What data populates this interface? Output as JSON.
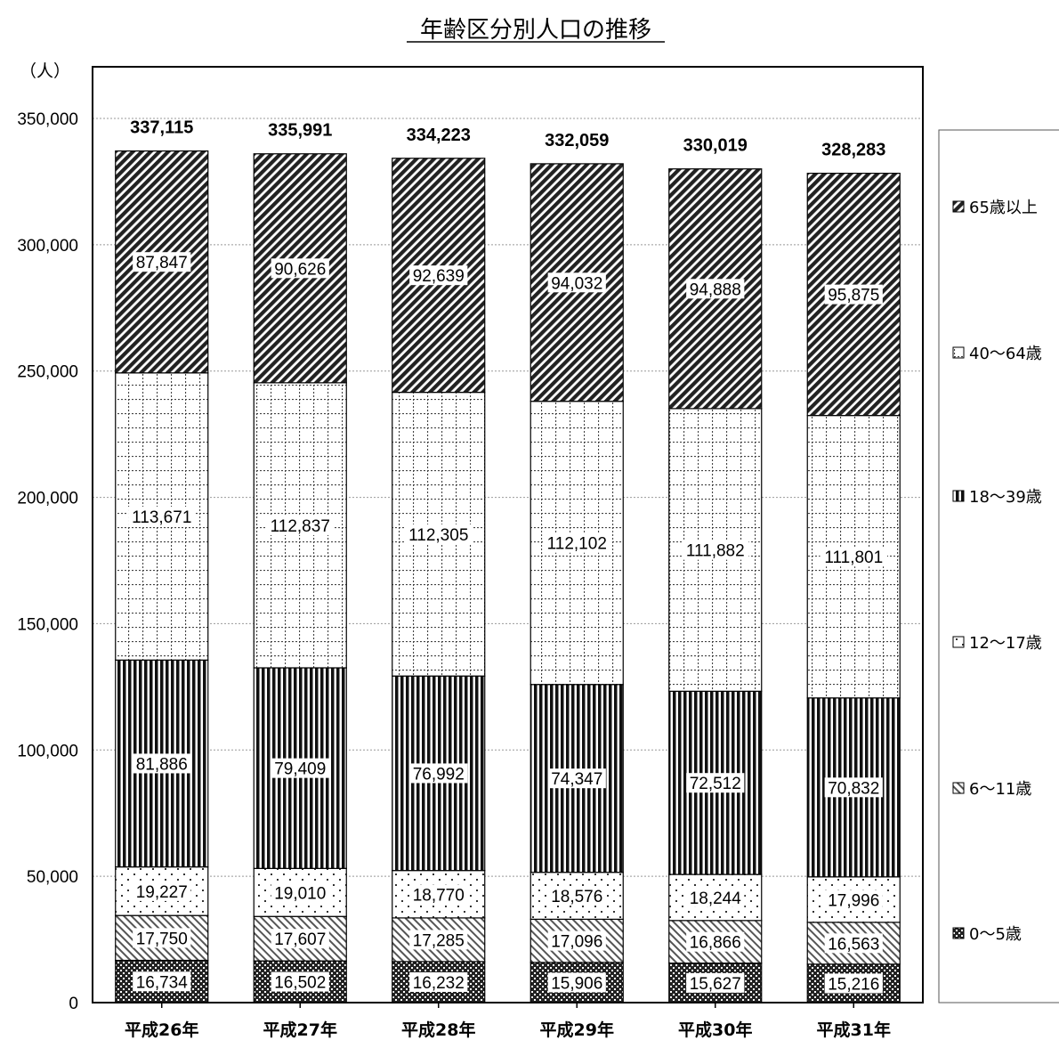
{
  "chart_data": {
    "type": "bar",
    "stacked": true,
    "title": "年齢区分別人口の推移",
    "unit_label": "（人）",
    "categories": [
      "平成26年",
      "平成27年",
      "平成28年",
      "平成29年",
      "平成30年",
      "平成31年"
    ],
    "series": [
      {
        "name": "0〜5歳",
        "pattern": "dots-dense",
        "values": [
          16734,
          16502,
          16232,
          15906,
          15627,
          15216
        ]
      },
      {
        "name": "6〜11歳",
        "pattern": "diagonal-light",
        "values": [
          17750,
          17607,
          17285,
          17096,
          16866,
          16563
        ]
      },
      {
        "name": "12〜17歳",
        "pattern": "dots-sparse",
        "values": [
          19227,
          19010,
          18770,
          18576,
          18244,
          17996
        ]
      },
      {
        "name": "18〜39歳",
        "pattern": "vertical-stripes",
        "values": [
          81886,
          79409,
          76992,
          74347,
          72512,
          70832
        ]
      },
      {
        "name": "40〜64歳",
        "pattern": "dotted-grid",
        "values": [
          113671,
          112837,
          112305,
          112102,
          111882,
          111801
        ]
      },
      {
        "name": "65歳以上",
        "pattern": "diagonal-dark",
        "values": [
          87847,
          90626,
          92639,
          94032,
          94888,
          95875
        ]
      }
    ],
    "totals": [
      337115,
      335991,
      334223,
      332059,
      330019,
      328283
    ],
    "ylim": [
      0,
      400000
    ],
    "yticks": [
      0,
      50000,
      100000,
      150000,
      200000,
      250000,
      300000,
      350000
    ],
    "ytick_labels": [
      "0",
      "50,000",
      "100,000",
      "150,000",
      "200,000",
      "250,000",
      "300,000",
      "350,000"
    ],
    "grid": true,
    "legend_position": "right",
    "legend_order": [
      "65歳以上",
      "40〜64歳",
      "18〜39歳",
      "12〜17歳",
      "6〜11歳",
      "0〜5歳"
    ]
  }
}
